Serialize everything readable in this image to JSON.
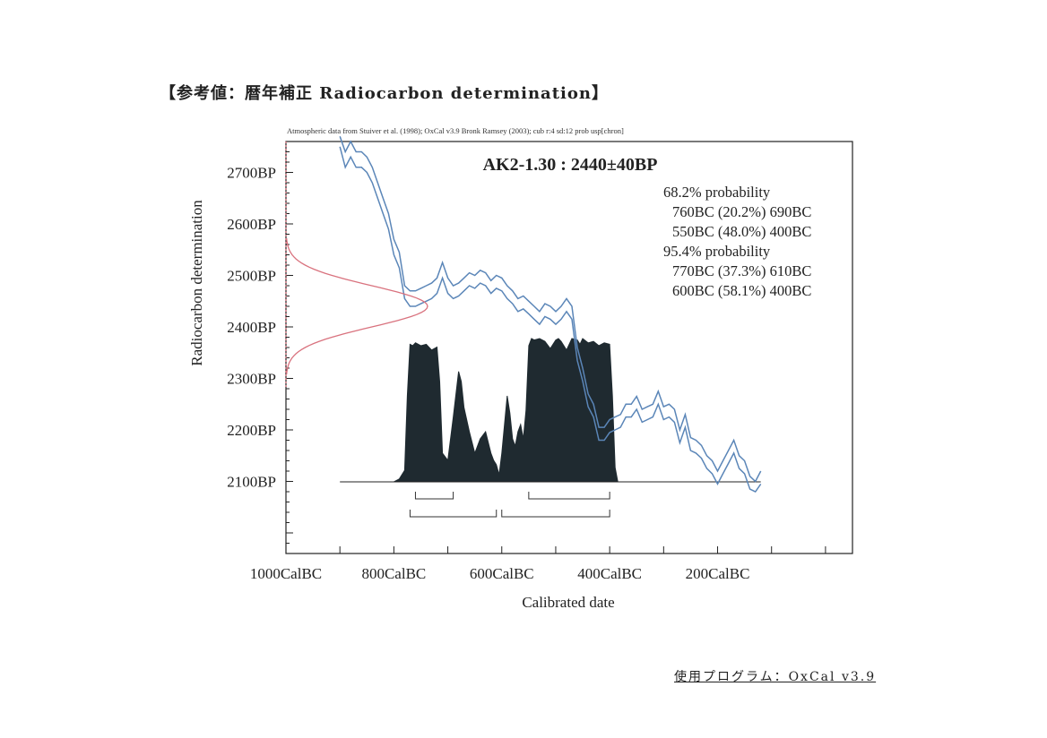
{
  "page": {
    "title": "【参考値：暦年補正 Radiocarbon determination】",
    "footer": "使用プログラム：OxCal v3.9"
  },
  "chart_data": {
    "type": "area",
    "header_note": "Atmospheric data from Stuiver et al. (1998); OxCal v3.9 Bronk Ramsey (2003); cub r:4 sd:12 prob usp[chron]",
    "sample_label": "AK2-1.30 : 2440±40BP",
    "xlabel": "Calibrated date",
    "ylabel": "Radiocarbon determination",
    "x_axis": {
      "range": [
        -1000,
        50
      ],
      "tick_values": [
        -1000,
        -800,
        -600,
        -400,
        -200
      ],
      "tick_labels": [
        "1000CalBC",
        "800CalBC",
        "600CalBC",
        "400CalBC",
        "200CalBC"
      ],
      "minor_step": 100
    },
    "y_axis": {
      "range": [
        1960,
        2760
      ],
      "tick_values": [
        2700,
        2600,
        2500,
        2400,
        2300,
        2200,
        2100
      ],
      "tick_labels": [
        "2700BP",
        "2600BP",
        "2500BP",
        "2400BP",
        "2300BP",
        "2200BP",
        "2100BP"
      ]
    },
    "probability_text": [
      "68.2% probability",
      "760BC (20.2%) 690BC",
      "550BC (48.0%) 400BC",
      "95.4% probability",
      "770BC (37.3%) 610BC",
      "600BC (58.1%) 400BC"
    ],
    "radiocarbon_distribution": {
      "mean": 2440,
      "sd": 40
    },
    "calibration_curve": {
      "x": [
        -900,
        -890,
        -880,
        -870,
        -860,
        -850,
        -840,
        -830,
        -820,
        -810,
        -800,
        -790,
        -780,
        -770,
        -760,
        -750,
        -740,
        -730,
        -720,
        -710,
        -700,
        -690,
        -680,
        -670,
        -660,
        -650,
        -640,
        -630,
        -620,
        -610,
        -600,
        -590,
        -580,
        -570,
        -560,
        -550,
        -540,
        -530,
        -520,
        -510,
        -500,
        -490,
        -480,
        -470,
        -460,
        -450,
        -440,
        -430,
        -420,
        -410,
        -400,
        -390,
        -380,
        -370,
        -360,
        -350,
        -340,
        -330,
        -320,
        -310,
        -300,
        -290,
        -280,
        -270,
        -260,
        -250,
        -240,
        -230,
        -220,
        -210,
        -200,
        -190,
        -180,
        -170,
        -160,
        -150,
        -140,
        -130,
        -120
      ],
      "upper": [
        2770,
        2740,
        2760,
        2740,
        2740,
        2730,
        2710,
        2680,
        2650,
        2620,
        2570,
        2545,
        2480,
        2470,
        2470,
        2475,
        2480,
        2485,
        2495,
        2525,
        2495,
        2480,
        2485,
        2495,
        2505,
        2500,
        2510,
        2505,
        2490,
        2500,
        2495,
        2480,
        2470,
        2455,
        2460,
        2450,
        2440,
        2430,
        2445,
        2440,
        2430,
        2440,
        2455,
        2440,
        2360,
        2320,
        2270,
        2250,
        2205,
        2205,
        2220,
        2225,
        2230,
        2250,
        2250,
        2265,
        2240,
        2245,
        2250,
        2275,
        2245,
        2250,
        2240,
        2200,
        2230,
        2185,
        2180,
        2170,
        2150,
        2140,
        2120,
        2140,
        2160,
        2180,
        2150,
        2140,
        2110,
        2100,
        2120
      ],
      "lower": [
        2750,
        2710,
        2730,
        2710,
        2710,
        2700,
        2680,
        2650,
        2620,
        2590,
        2540,
        2515,
        2455,
        2440,
        2440,
        2445,
        2450,
        2455,
        2465,
        2495,
        2465,
        2455,
        2460,
        2470,
        2480,
        2475,
        2485,
        2480,
        2465,
        2475,
        2470,
        2455,
        2445,
        2430,
        2435,
        2425,
        2415,
        2405,
        2420,
        2415,
        2405,
        2415,
        2430,
        2415,
        2335,
        2295,
        2245,
        2225,
        2180,
        2180,
        2195,
        2200,
        2205,
        2225,
        2225,
        2240,
        2215,
        2220,
        2225,
        2250,
        2220,
        2225,
        2215,
        2175,
        2205,
        2160,
        2155,
        2145,
        2125,
        2115,
        2095,
        2115,
        2135,
        2155,
        2125,
        2115,
        2085,
        2080,
        2095
      ]
    },
    "calibrated_distribution": {
      "x": [
        -800,
        -790,
        -780,
        -775,
        -770,
        -765,
        -760,
        -750,
        -740,
        -730,
        -720,
        -715,
        -710,
        -700,
        -690,
        -680,
        -675,
        -670,
        -660,
        -650,
        -640,
        -630,
        -620,
        -615,
        -610,
        -605,
        -600,
        -595,
        -590,
        -585,
        -580,
        -575,
        -570,
        -565,
        -560,
        -555,
        -550,
        -545,
        -540,
        -530,
        -520,
        -510,
        -500,
        -495,
        -490,
        -480,
        -470,
        -460,
        -455,
        -450,
        -440,
        -430,
        -420,
        -410,
        -400,
        -395,
        -390,
        -385
      ],
      "density": [
        0.0,
        0.02,
        0.08,
        0.6,
        0.96,
        0.95,
        0.97,
        0.95,
        0.96,
        0.92,
        0.94,
        0.7,
        0.2,
        0.15,
        0.45,
        0.77,
        0.7,
        0.52,
        0.35,
        0.2,
        0.3,
        0.35,
        0.2,
        0.15,
        0.12,
        0.05,
        0.2,
        0.4,
        0.6,
        0.48,
        0.3,
        0.25,
        0.35,
        0.4,
        0.3,
        0.5,
        0.95,
        1.0,
        0.99,
        1.0,
        0.98,
        0.93,
        0.99,
        1.0,
        0.98,
        0.92,
        1.0,
        0.99,
        0.96,
        1.0,
        0.97,
        0.98,
        0.95,
        0.97,
        0.96,
        0.6,
        0.1,
        0.0
      ]
    },
    "ranges_68": [
      [
        -760,
        -690
      ],
      [
        -550,
        -400
      ]
    ],
    "ranges_95": [
      [
        -770,
        -610
      ],
      [
        -600,
        -400
      ]
    ]
  }
}
